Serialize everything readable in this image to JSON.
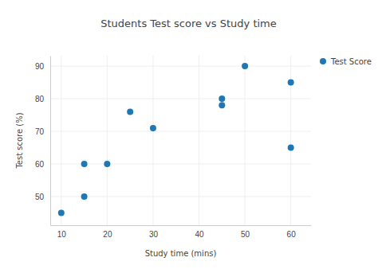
{
  "chart_data": {
    "type": "scatter",
    "title": "Students Test score vs Study time",
    "x_label": "Study time (mins)",
    "y_label": "Test score (%)",
    "x": [
      10,
      15,
      15,
      20,
      25,
      30,
      45,
      45,
      50,
      60,
      60
    ],
    "series": [
      {
        "name": "Test Score",
        "color": "#1f77b4",
        "marker": "circle",
        "values": [
          45,
          50,
          60,
          60,
          76,
          71,
          80,
          78,
          90,
          85,
          65
        ]
      }
    ],
    "xlim": [
      7.6,
      64.4
    ],
    "xticks": [
      10,
      20,
      30,
      40,
      50,
      60
    ],
    "ylim": [
      41.2,
      93.2
    ],
    "yticks": [
      50,
      60,
      70,
      80,
      90
    ],
    "grid": true,
    "legend": "top-right"
  }
}
